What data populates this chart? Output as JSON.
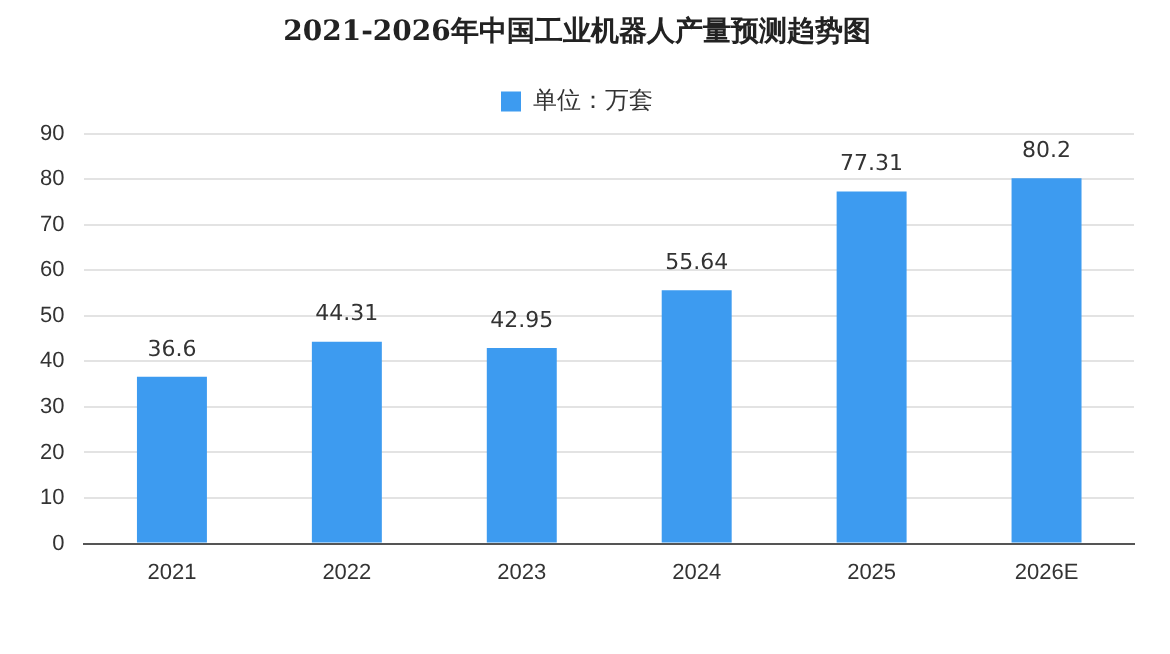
{
  "chart_data": {
    "type": "bar",
    "title": "2021-2026年中国工业机器人产量预测趋势图",
    "categories": [
      "2021",
      "2022",
      "2023",
      "2024",
      "2025",
      "2026E"
    ],
    "series": [
      {
        "name": "单位：万套",
        "color": "#3d9bf0",
        "values": [
          36.6,
          44.31,
          42.95,
          55.64,
          77.31,
          80.2
        ]
      }
    ],
    "ylim": [
      0,
      90
    ],
    "yticks": [
      0,
      10,
      20,
      30,
      40,
      50,
      60,
      70,
      80,
      90
    ],
    "grid": "y",
    "legend": "top",
    "data_labels": true
  }
}
